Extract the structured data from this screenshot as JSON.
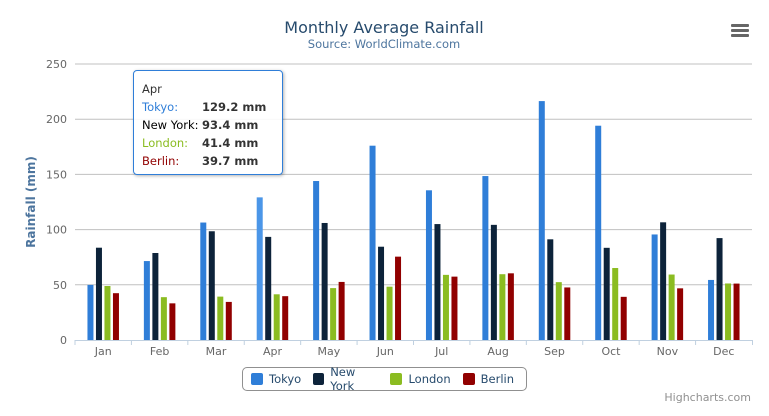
{
  "chart_data": {
    "type": "bar",
    "title": "Monthly Average Rainfall",
    "subtitle": "Source: WorldClimate.com",
    "xlabel": "",
    "ylabel": "Rainfall (mm)",
    "ylim": [
      0,
      250
    ],
    "yticks": [
      0,
      50,
      100,
      150,
      200,
      250
    ],
    "grid": true,
    "legend_position": "bottom",
    "categories": [
      "Jan",
      "Feb",
      "Mar",
      "Apr",
      "May",
      "Jun",
      "Jul",
      "Aug",
      "Sep",
      "Oct",
      "Nov",
      "Dec"
    ],
    "series": [
      {
        "name": "Tokyo",
        "color": "#2f7ed8",
        "values": [
          49.9,
          71.5,
          106.4,
          129.2,
          144.0,
          176.0,
          135.6,
          148.5,
          216.4,
          194.1,
          95.6,
          54.4
        ]
      },
      {
        "name": "New York",
        "color": "#0d233a",
        "values": [
          83.6,
          78.8,
          98.5,
          93.4,
          106.0,
          84.5,
          105.0,
          104.3,
          91.2,
          83.5,
          106.6,
          92.3
        ]
      },
      {
        "name": "London",
        "color": "#8bbc21",
        "values": [
          48.9,
          38.8,
          39.3,
          41.4,
          47.0,
          48.3,
          59.0,
          59.6,
          52.4,
          65.2,
          59.3,
          51.2
        ]
      },
      {
        "name": "Berlin",
        "color": "#910000",
        "values": [
          42.4,
          33.2,
          34.5,
          39.7,
          52.6,
          75.5,
          57.4,
          60.4,
          47.6,
          39.1,
          46.8,
          51.1
        ]
      }
    ]
  },
  "tooltip": {
    "header": "Apr",
    "rows": [
      {
        "label": "Tokyo:",
        "value": "129.2 mm",
        "color": "#2f7ed8"
      },
      {
        "label": "New York:",
        "value": "93.4 mm",
        "color": "#000000"
      },
      {
        "label": "London:",
        "value": "41.4 mm",
        "color": "#8bbc21"
      },
      {
        "label": "Berlin:",
        "value": "39.7 mm",
        "color": "#910000"
      }
    ]
  },
  "credits": "Highcharts.com",
  "menu_icon": "hamburger-menu-icon"
}
